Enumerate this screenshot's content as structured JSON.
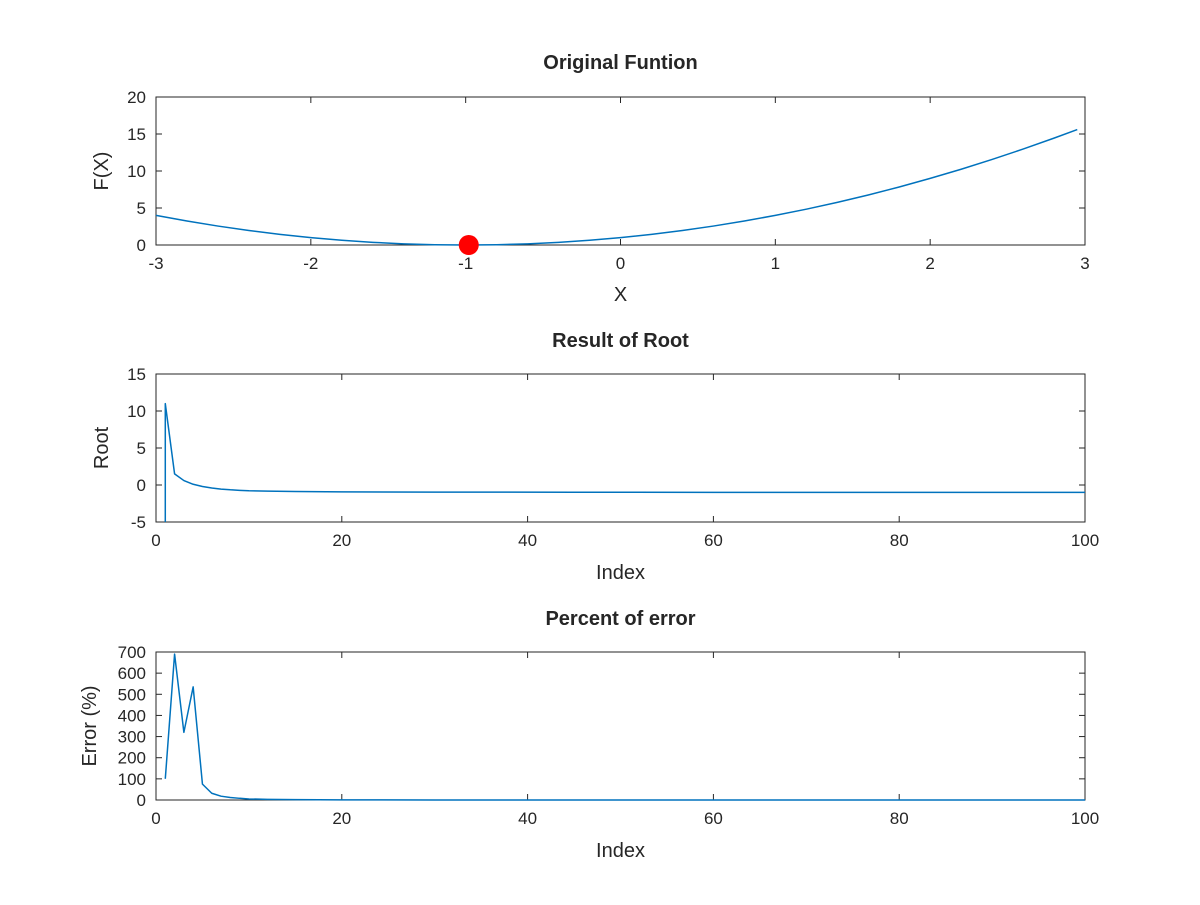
{
  "figure": {
    "background": "#ffffff",
    "line_color": "#0072bd",
    "marker_color": "#ff0000"
  },
  "chart_data": [
    {
      "type": "line",
      "title": "Original Funtion",
      "xlabel": "X",
      "ylabel": "F(X)",
      "xlim": [
        -3,
        3
      ],
      "ylim": [
        0,
        20
      ],
      "xticks": [
        -3,
        -2,
        -1,
        0,
        1,
        2,
        3
      ],
      "yticks": [
        0,
        5,
        10,
        15,
        20
      ],
      "xtick_labels": [
        "-3",
        "-2",
        "-1",
        "0",
        "1",
        "2",
        "3"
      ],
      "ytick_labels": [
        "0",
        "5",
        "10",
        "15",
        "20"
      ],
      "grid": false,
      "series": [
        {
          "x": [
            -3.0,
            -2.8,
            -2.6,
            -2.4,
            -2.2,
            -2.0,
            -1.8,
            -1.6,
            -1.4,
            -1.2,
            -1.0,
            -0.8,
            -0.6,
            -0.4,
            -0.2,
            0.0,
            0.2,
            0.4,
            0.6,
            0.8,
            1.0,
            1.2,
            1.4,
            1.6,
            1.8,
            2.0,
            2.2,
            2.4,
            2.6,
            2.8,
            2.95
          ],
          "y": [
            4.0,
            3.24,
            2.56,
            1.96,
            1.44,
            1.0,
            0.64,
            0.36,
            0.16,
            0.04,
            0.0,
            0.04,
            0.16,
            0.36,
            0.64,
            1.0,
            1.44,
            1.96,
            2.56,
            3.24,
            4.0,
            4.84,
            5.76,
            6.76,
            7.84,
            9.0,
            10.24,
            11.56,
            12.96,
            14.44,
            15.6
          ]
        }
      ],
      "markers": [
        {
          "x": -0.98,
          "y": 0.0
        }
      ]
    },
    {
      "type": "line",
      "title": "Result of Root",
      "xlabel": "Index",
      "ylabel": "Root",
      "xlim": [
        0,
        100
      ],
      "ylim": [
        -5,
        15
      ],
      "xticks": [
        0,
        20,
        40,
        60,
        80,
        100
      ],
      "yticks": [
        -5,
        0,
        5,
        10,
        15
      ],
      "xtick_labels": [
        "0",
        "20",
        "40",
        "60",
        "80",
        "100"
      ],
      "ytick_labels": [
        "-5",
        "0",
        "5",
        "10",
        "15"
      ],
      "grid": false,
      "series": [
        {
          "x": [
            1,
            1,
            2,
            3,
            4,
            5,
            6,
            7,
            8,
            9,
            10,
            12,
            15,
            20,
            30,
            45,
            60,
            80,
            100
          ],
          "y": [
            -5,
            11.0,
            1.5,
            0.6,
            0.1,
            -0.2,
            -0.4,
            -0.55,
            -0.65,
            -0.72,
            -0.78,
            -0.83,
            -0.88,
            -0.93,
            -0.96,
            -0.98,
            -0.99,
            -1.0,
            -1.0
          ]
        }
      ]
    },
    {
      "type": "line",
      "title": "Percent of error",
      "xlabel": "Index",
      "ylabel": "Error (%)",
      "xlim": [
        0,
        100
      ],
      "ylim": [
        0,
        700
      ],
      "xticks": [
        0,
        20,
        40,
        60,
        80,
        100
      ],
      "yticks": [
        0,
        100,
        200,
        300,
        400,
        500,
        600,
        700
      ],
      "xtick_labels": [
        "0",
        "20",
        "40",
        "60",
        "80",
        "100"
      ],
      "ytick_labels": [
        "0",
        "100",
        "200",
        "300",
        "400",
        "500",
        "600",
        "700"
      ],
      "grid": false,
      "series": [
        {
          "x": [
            1,
            2,
            3,
            4,
            5,
            6,
            7,
            8,
            9,
            10,
            12,
            15,
            20,
            30,
            50,
            100
          ],
          "y": [
            100,
            690,
            320,
            535,
            75,
            32,
            18,
            12,
            8,
            5,
            3,
            1.5,
            0.8,
            0.3,
            0.1,
            0
          ]
        }
      ]
    }
  ]
}
